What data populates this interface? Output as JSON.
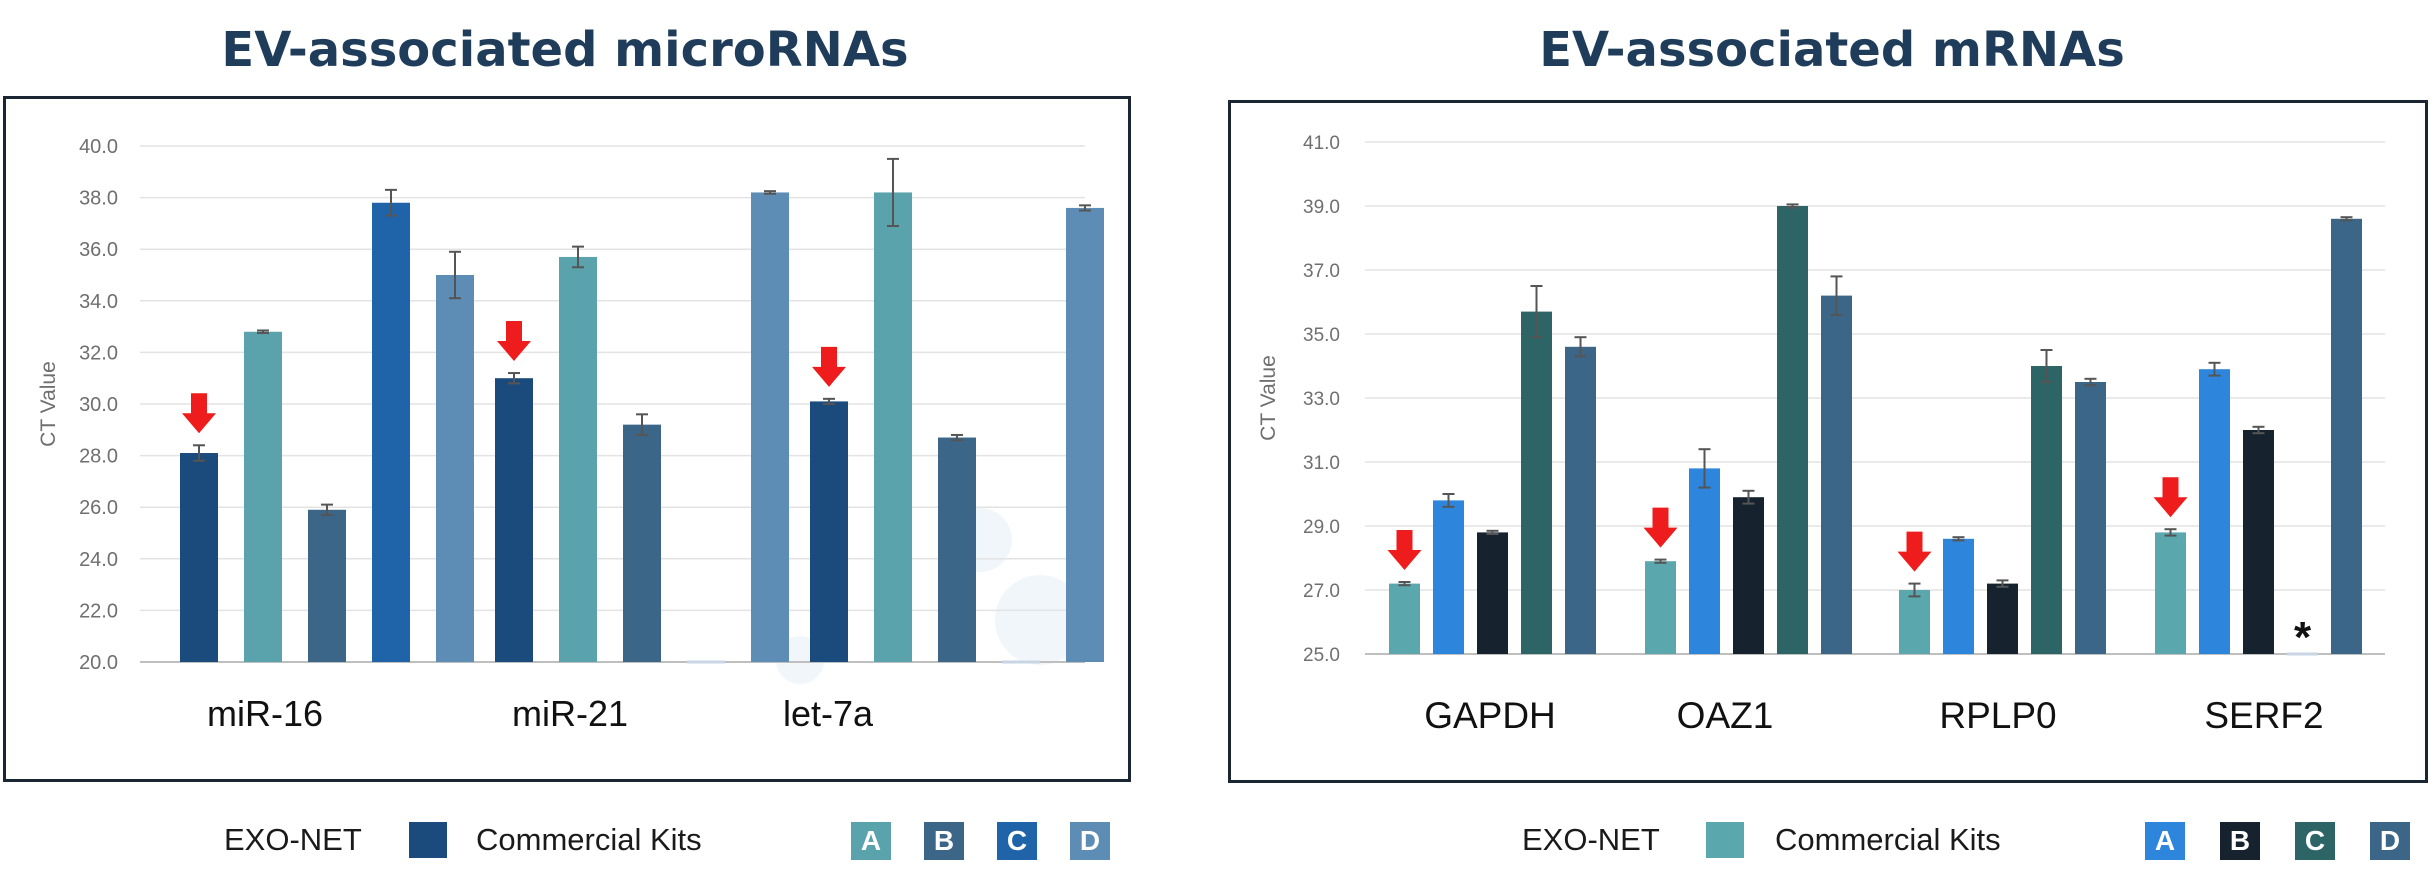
{
  "titles": {
    "left": "EV-associated microRNAs",
    "right": "EV-associated mRNAs"
  },
  "legend": {
    "exo_label": "EXO-NET",
    "kits_label": "Commercial Kits",
    "kits": [
      "A",
      "B",
      "C",
      "D"
    ]
  },
  "colors": {
    "left": {
      "exo": "#1b4a7c",
      "A": "#5aa3ac",
      "B": "#3c6688",
      "C": "#1f63a8",
      "D": "#5d8db5"
    },
    "right": {
      "exo": "#5aa7ad",
      "A": "#2e85dc",
      "B": "#16232f",
      "C": "#2d6466",
      "D": "#3c6688"
    }
  },
  "chart_data": [
    {
      "type": "bar",
      "title": "EV-associated microRNAs",
      "ylabel": "CT Value",
      "ylim": [
        20,
        40
      ],
      "yticks": [
        "20.0",
        "22.0",
        "24.0",
        "26.0",
        "28.0",
        "30.0",
        "32.0",
        "34.0",
        "36.0",
        "38.0",
        "40.0"
      ],
      "grid": true,
      "categories": [
        "miR-16",
        "miR-21",
        "let-7a"
      ],
      "series": [
        {
          "name": "EXO-NET",
          "values": [
            28.1,
            31.0,
            30.1
          ],
          "errors": [
            0.3,
            0.2,
            0.1
          ]
        },
        {
          "name": "A",
          "values": [
            32.8,
            35.7,
            38.2
          ],
          "errors": [
            0.05,
            0.4,
            1.3
          ]
        },
        {
          "name": "B",
          "values": [
            25.9,
            29.2,
            28.7
          ],
          "errors": [
            0.2,
            0.4,
            0.1
          ]
        },
        {
          "name": "C",
          "values": [
            37.8,
            null,
            null
          ],
          "errors": [
            0.5,
            0,
            0
          ]
        },
        {
          "name": "D",
          "values": [
            35.0,
            38.2,
            37.6
          ],
          "errors": [
            0.9,
            0.05,
            0.1
          ]
        }
      ],
      "highlight": "EXO-NET"
    },
    {
      "type": "bar",
      "title": "EV-associated mRNAs",
      "ylabel": "CT Value",
      "ylim": [
        25,
        41
      ],
      "yticks": [
        "25.0",
        "27.0",
        "29.0",
        "31.0",
        "33.0",
        "35.0",
        "37.0",
        "39.0",
        "41.0"
      ],
      "grid": true,
      "categories": [
        "GAPDH",
        "OAZ1",
        "RPLP0",
        "SERF2"
      ],
      "series": [
        {
          "name": "EXO-NET",
          "values": [
            27.2,
            27.9,
            27.0,
            28.8
          ],
          "errors": [
            0.05,
            0.05,
            0.2,
            0.1
          ]
        },
        {
          "name": "A",
          "values": [
            29.8,
            30.8,
            28.6,
            33.9
          ],
          "errors": [
            0.2,
            0.6,
            0.05,
            0.2
          ]
        },
        {
          "name": "B",
          "values": [
            28.8,
            29.9,
            27.2,
            32.0
          ],
          "errors": [
            0.05,
            0.2,
            0.1,
            0.1
          ]
        },
        {
          "name": "C",
          "values": [
            35.7,
            39.0,
            34.0,
            null
          ],
          "errors": [
            0.8,
            0.05,
            0.5,
            0
          ]
        },
        {
          "name": "D",
          "values": [
            34.6,
            36.2,
            33.5,
            38.6
          ],
          "errors": [
            0.3,
            0.6,
            0.1,
            0.05
          ]
        }
      ],
      "highlight": "EXO-NET",
      "annotations": [
        {
          "category": "SERF2",
          "series": "C",
          "text": "*"
        }
      ]
    }
  ]
}
